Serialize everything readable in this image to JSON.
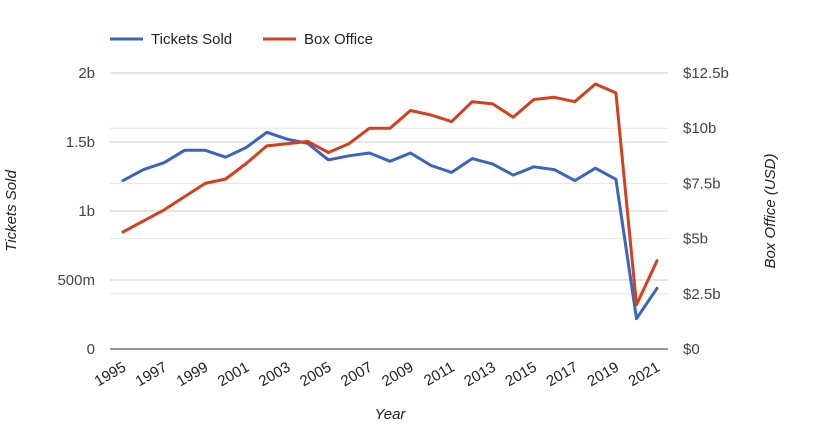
{
  "chart_data": {
    "type": "line",
    "title": "",
    "xlabel": "Year",
    "ylabel_left": "Tickets Sold",
    "ylabel_right": "Box Office (USD)",
    "x": [
      1995,
      1996,
      1997,
      1998,
      1999,
      2000,
      2001,
      2002,
      2003,
      2004,
      2005,
      2006,
      2007,
      2008,
      2009,
      2010,
      2011,
      2012,
      2013,
      2014,
      2015,
      2016,
      2017,
      2018,
      2019,
      2020,
      2021
    ],
    "x_tick_labels": [
      "1995",
      "1997",
      "1999",
      "2001",
      "2003",
      "2005",
      "2007",
      "2009",
      "2011",
      "2013",
      "2015",
      "2017",
      "2019",
      "2021"
    ],
    "x_tick_values": [
      1995,
      1997,
      1999,
      2001,
      2003,
      2005,
      2007,
      2009,
      2011,
      2013,
      2015,
      2017,
      2019,
      2021
    ],
    "xlim": [
      1995,
      2021
    ],
    "y_left_lim": [
      0,
      2000000000
    ],
    "y_left_ticks": [
      0,
      500000000,
      1000000000,
      1500000000,
      2000000000
    ],
    "y_left_tick_labels": [
      "0",
      "500m",
      "1b",
      "1.5b",
      "2b"
    ],
    "y_right_lim": [
      0,
      12.5
    ],
    "y_right_ticks": [
      0,
      2.5,
      5,
      7.5,
      10,
      12.5
    ],
    "y_right_tick_labels": [
      "$0",
      "$2.5b",
      "$5b",
      "$7.5b",
      "$10b",
      "$12.5b"
    ],
    "grid": true,
    "legend_position": "top-left",
    "series": [
      {
        "name": "Tickets Sold",
        "axis": "left",
        "color": "#3b64c0",
        "values": [
          1220000000,
          1300000000,
          1350000000,
          1440000000,
          1440000000,
          1390000000,
          1460000000,
          1570000000,
          1520000000,
          1490000000,
          1370000000,
          1400000000,
          1420000000,
          1360000000,
          1420000000,
          1330000000,
          1280000000,
          1380000000,
          1340000000,
          1260000000,
          1320000000,
          1300000000,
          1220000000,
          1310000000,
          1230000000,
          220000000,
          440000000
        ]
      },
      {
        "name": "Box Office",
        "axis": "right",
        "color": "#d2401e",
        "values": [
          5.3,
          5.8,
          6.3,
          6.9,
          7.5,
          7.7,
          8.4,
          9.2,
          9.3,
          9.4,
          8.9,
          9.3,
          10.0,
          10.0,
          10.8,
          10.6,
          10.3,
          11.2,
          11.1,
          10.5,
          11.3,
          11.4,
          11.2,
          12.0,
          11.6,
          2.0,
          4.0
        ]
      }
    ]
  }
}
